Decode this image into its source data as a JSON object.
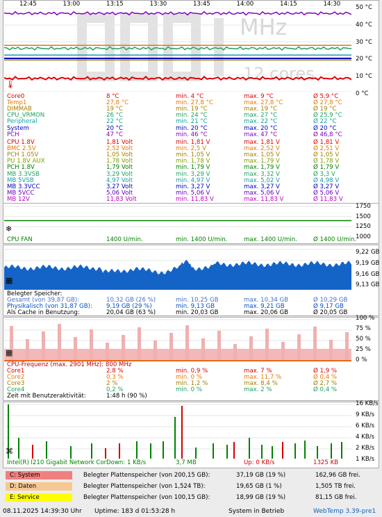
{
  "time_axis": [
    "12:45",
    "13:00",
    "13:15",
    "13:30",
    "13:45",
    "14:00",
    "14:15",
    "14:30"
  ],
  "temp_axis": [
    "50 °C",
    "40 °C",
    "30 °C",
    "20 °C",
    "10 °C",
    "0 °C"
  ],
  "watermark": {
    "unit": "MHz",
    "cores": "12 cores"
  },
  "temps": [
    {
      "name": "Core0",
      "cur": "8 °C",
      "min": "min. 4 °C",
      "max": "max. 9 °C",
      "avg": "Ø 5,9 °C",
      "color": "#e00000"
    },
    {
      "name": "Temp1",
      "cur": "27,8 °C",
      "min": "min. 27,8 °C",
      "max": "max. 27,8 °C",
      "avg": "Ø 27,8 °C",
      "color": "#e87800"
    },
    {
      "name": "DIMMAB",
      "cur": "19 °C",
      "min": "min. 19 °C",
      "max": "max. 19 °C",
      "avg": "Ø 19 °C",
      "color": "#a08000"
    },
    {
      "name": "CPU_VRMON",
      "cur": "26 °C",
      "min": "min. 24 °C",
      "max": "max. 27 °C",
      "avg": "Ø 25,9 °C",
      "color": "#20a060"
    },
    {
      "name": "Peripheral",
      "cur": "22 °C",
      "min": "min. 21 °C",
      "max": "max. 22 °C",
      "avg": "Ø 22 °C",
      "color": "#10a0a0"
    },
    {
      "name": "System",
      "cur": "20 °C",
      "min": "min. 20 °C",
      "max": "max. 20 °C",
      "avg": "Ø 20 °C",
      "color": "#0000c0"
    },
    {
      "name": "PCH",
      "cur": "47 °C",
      "min": "min. 46 °C",
      "max": "max. 47 °C",
      "avg": "Ø 46,8 °C",
      "color": "#8000c0"
    }
  ],
  "volts": [
    {
      "name": "CPU 1.8V",
      "cur": "1,81 Volt",
      "min": "min. 1,81 V",
      "max": "max. 1,81 V",
      "avg": "Ø 1,81 V",
      "color": "#e00000"
    },
    {
      "name": "BMC 2.5V",
      "cur": "2,52 Volt",
      "min": "min. 2,5 V",
      "max": "max. 2,52 V",
      "avg": "Ø 2,51 V",
      "color": "#e87800"
    },
    {
      "name": "PCH 1.05V",
      "cur": "1,05 Volt",
      "min": "min. 1,05 V",
      "max": "max. 1,05 V",
      "avg": "Ø 1,05 V",
      "color": "#a08000"
    },
    {
      "name": "PU 1.8V AUX",
      "cur": "1,78 Volt",
      "min": "min. 1,78 V",
      "max": "max. 1,79 V",
      "avg": "Ø 1,78 V",
      "color": "#80a000"
    },
    {
      "name": "PCH 1.8V",
      "cur": "1,79 Volt",
      "min": "min. 1,79 V",
      "max": "max. 1,79 V",
      "avg": "Ø 1,79 V",
      "color": "#008000"
    },
    {
      "name": "MB 3.3VSB",
      "cur": "3,29 Volt",
      "min": "min. 3,29 V",
      "max": "max. 3,32 V",
      "avg": "Ø 3,3 V",
      "color": "#20a060"
    },
    {
      "name": "MB 5VSB",
      "cur": "4,97 Volt",
      "min": "min. 4,97 V",
      "max": "max. 5,02 V",
      "avg": "Ø 4,98 V",
      "color": "#10a0a0"
    },
    {
      "name": "MB 3.3VCC",
      "cur": "3,27 Volt",
      "min": "min. 3,27 V",
      "max": "max. 3,27 V",
      "avg": "Ø 3,27 V",
      "color": "#0000c0"
    },
    {
      "name": "MB 5VCC",
      "cur": "5,06 Volt",
      "min": "min. 5,06 V",
      "max": "max. 5,06 V",
      "avg": "Ø 5,06 V",
      "color": "#6000c0"
    },
    {
      "name": "MB 12V",
      "cur": "11,83 Volt",
      "min": "min. 11,83 V",
      "max": "max. 11,83 V",
      "avg": "Ø 11,83 V",
      "color": "#c000c0"
    }
  ],
  "fan": {
    "axis": [
      "1750",
      "1500",
      "1250",
      "1000"
    ],
    "name": "CPU FAN",
    "cur": "1400 U/min.",
    "min": "min. 1400 U/min.",
    "max": "max. 1400 U/min.",
    "avg": "Ø 1400 U/min.",
    "color": "#008000"
  },
  "memory": {
    "axis": [
      "9,22 GB",
      "9,19 GB",
      "9,16 GB",
      "9,13 GB"
    ],
    "title": "Belegter Speicher:",
    "rows": [
      {
        "name": "Gesamt (von 39,87 GB):",
        "cur": "10,32 GB (26 %)",
        "min": "min. 10,25 GB",
        "max": "max. 10,34 GB",
        "avg": "Ø 10,29 GB",
        "color": "#4070d0"
      },
      {
        "name": "Physikalisch (von 31,87 GB):",
        "cur": "9,19 GB (29 %)",
        "min": "min. 9,13 GB",
        "max": "max. 9,21 GB",
        "avg": "Ø 9,17 GB",
        "color": "#0050c0"
      },
      {
        "name": "Als Cache in Benutzung:",
        "cur": "20,04 GB (63 %)",
        "min": "min. 20,03 GB",
        "max": "max. 20,06 GB",
        "avg": "Ø 20,05 GB",
        "color": "#000000"
      }
    ]
  },
  "cpu": {
    "axis": [
      "100 %",
      "75 %",
      "50 %",
      "25 %",
      "0 %"
    ],
    "title": "CPU-Frequenz (max. 2901 MHz): 800 MHz",
    "rows": [
      {
        "name": "Core1",
        "cur": "2,8 %",
        "min": "min. 0,9 %",
        "max": "max. 7 %",
        "avg": "Ø 1,9 %",
        "color": "#e00000"
      },
      {
        "name": "Core2",
        "cur": "0,3 %",
        "min": "min. 0 %",
        "max": "max. 11,7 %",
        "avg": "Ø 0,4 %",
        "color": "#e87800"
      },
      {
        "name": "Core3",
        "cur": "2 %",
        "min": "min. 1,2 %",
        "max": "max. 8,4 %",
        "avg": "Ø 2,7 %",
        "color": "#a08000"
      },
      {
        "name": "Core4",
        "cur": "0,2 %",
        "min": "min. 0 %",
        "max": "max. 2 %",
        "avg": "Ø 0,4 %",
        "color": "#20a060"
      }
    ],
    "activity_label": "Zeit mit Benutzeraktivität:",
    "activity_value": "1:48 h (90 %)"
  },
  "network": {
    "axis": [
      "16 KB/s",
      "9 KB/s",
      "6 KB/s",
      "4 KB/s",
      "2 KB/s",
      "1 KB/s"
    ],
    "name": "Intel(R) I210 Gigabit Network Cor",
    "down": "Down: 1 KB/s",
    "down_total": "3,7 MB",
    "up": "Up: 0 KB/s",
    "up_total": "1325 KB"
  },
  "drives": [
    {
      "label": "C: System",
      "color": "#f08080",
      "desc": "Belegter Plattenspeicher (von 200,15 GB):",
      "used": "37,19 GB (19 %)",
      "free": "162,96 GB frei."
    },
    {
      "label": "D: Daten",
      "color": "#f6c992",
      "desc": "Belegter Plattenspeicher (von 1,524 TB):",
      "used": "19,65 GB (1 %)",
      "free": "1,505 TB frei."
    },
    {
      "label": "E: Service",
      "color": "#ffff00",
      "desc": "Belegter Plattenspeicher (von 100,15 GB):",
      "used": "18,99 GB (19 %)",
      "free": "81,15 GB frei."
    }
  ],
  "status": {
    "datetime": "08.11.2025 14:39:30 Uhr",
    "uptime": "Uptime: 183 d 01:53:28 h",
    "state": "System in Betrieb",
    "app": "WebTemp 3.39-pre1"
  }
}
